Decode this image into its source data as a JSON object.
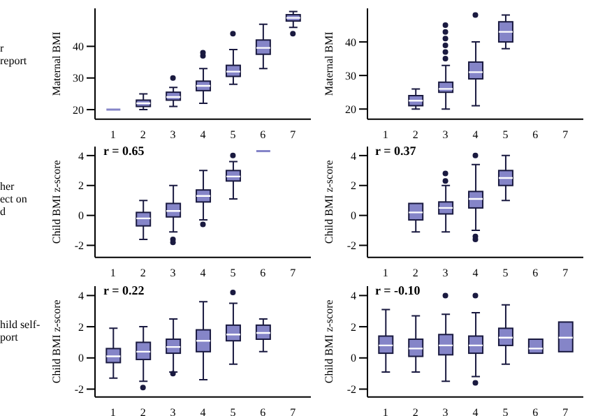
{
  "chart_data": [
    {
      "type": "box",
      "categories": [
        "1",
        "2",
        "3",
        "4",
        "5",
        "6",
        "7"
      ],
      "ylabel": "Maternal BMI",
      "ylim": [
        17,
        52
      ],
      "yticks": [
        20,
        30,
        40
      ],
      "color": "#8585c8",
      "annotations": [
        "r",
        "report"
      ],
      "boxes": [
        {
          "low": 20,
          "q1": 20,
          "median": 20,
          "q3": 20,
          "high": 20
        },
        {
          "low": 20,
          "q1": 21,
          "median": 22,
          "q3": 23,
          "high": 25
        },
        {
          "low": 21,
          "q1": 23,
          "median": 24,
          "q3": 25.5,
          "high": 27,
          "outliers": [
            30
          ]
        },
        {
          "low": 22,
          "q1": 26,
          "median": 27.5,
          "q3": 29,
          "high": 33,
          "outliers": [
            37,
            38
          ]
        },
        {
          "low": 28,
          "q1": 30.5,
          "median": 32,
          "q3": 34,
          "high": 39,
          "outliers": [
            44
          ]
        },
        {
          "low": 33,
          "q1": 37.5,
          "median": 39.5,
          "q3": 42,
          "high": 47
        },
        {
          "low": 46,
          "q1": 48,
          "median": 49,
          "q3": 50,
          "high": 51,
          "outliers": [
            44
          ]
        }
      ]
    },
    {
      "type": "box",
      "categories": [
        "1",
        "2",
        "3",
        "4",
        "5",
        "6",
        "7"
      ],
      "ylabel": "Maternal BMI",
      "ylim": [
        17,
        50
      ],
      "yticks": [
        20,
        30,
        40
      ],
      "color": "#8585c8",
      "boxes": [
        null,
        {
          "low": 20,
          "q1": 21,
          "median": 22.5,
          "q3": 24,
          "high": 26
        },
        {
          "low": 20,
          "q1": 25,
          "median": 26,
          "q3": 28,
          "high": 33,
          "outliers": [
            35,
            37,
            39,
            41,
            43,
            45
          ]
        },
        {
          "low": 21,
          "q1": 29,
          "median": 31,
          "q3": 34,
          "high": 40,
          "outliers": [
            48
          ]
        },
        {
          "low": 38,
          "q1": 40,
          "median": 43,
          "q3": 46,
          "high": 48
        },
        null,
        null
      ]
    },
    {
      "type": "box",
      "categories": [
        "1",
        "2",
        "3",
        "4",
        "5",
        "6",
        "7"
      ],
      "title": "r = 0.65",
      "ylabel": "Child BMI z-score",
      "ylim": [
        -2.8,
        4.6
      ],
      "yticks": [
        -2,
        0,
        2,
        4
      ],
      "color": "#8585c8",
      "annotations": [
        "her",
        "ect on",
        "d"
      ],
      "boxes": [
        null,
        {
          "low": -1.6,
          "q1": -0.7,
          "median": -0.2,
          "q3": 0.2,
          "high": 1.0
        },
        {
          "low": -1.1,
          "q1": -0.1,
          "median": 0.3,
          "q3": 0.8,
          "high": 2.0,
          "outliers": [
            -1.6,
            -1.8
          ]
        },
        {
          "low": -0.3,
          "q1": 0.9,
          "median": 1.3,
          "q3": 1.7,
          "high": 3.0,
          "outliers": [
            -0.6
          ]
        },
        {
          "low": 1.1,
          "q1": 2.3,
          "median": 2.6,
          "q3": 3.0,
          "high": 3.6,
          "outliers": [
            4.0
          ]
        },
        {
          "low": 4.3,
          "q1": 4.3,
          "median": 4.3,
          "q3": 4.3,
          "high": 4.3
        },
        null
      ]
    },
    {
      "type": "box",
      "categories": [
        "1",
        "2",
        "3",
        "4",
        "5",
        "6",
        "7"
      ],
      "title": "r = 0.37",
      "ylabel": "Child BMI z-score",
      "ylim": [
        -2.8,
        4.6
      ],
      "yticks": [
        -2,
        0,
        2,
        4
      ],
      "color": "#8585c8",
      "boxes": [
        null,
        {
          "low": -1.1,
          "q1": -0.3,
          "median": 0.2,
          "q3": 0.8,
          "high": 0.8
        },
        {
          "low": -1.1,
          "q1": 0.1,
          "median": 0.5,
          "q3": 0.9,
          "high": 2.0,
          "outliers": [
            2.3,
            2.8
          ]
        },
        {
          "low": -1.0,
          "q1": 0.5,
          "median": 1.1,
          "q3": 1.6,
          "high": 3.4,
          "outliers": [
            -1.4,
            -1.6,
            4.0
          ]
        },
        {
          "low": 1.0,
          "q1": 2.0,
          "median": 2.5,
          "q3": 3.0,
          "high": 4.0
        },
        null,
        null
      ]
    },
    {
      "type": "box",
      "categories": [
        "1",
        "2",
        "3",
        "4",
        "5",
        "6",
        "7"
      ],
      "title": "r = 0.22",
      "ylabel": "Child BMI z-score",
      "ylim": [
        -2.5,
        4.6
      ],
      "yticks": [
        -2,
        0,
        2,
        4
      ],
      "color": "#8585c8",
      "annotations": [
        "hild self-",
        "port"
      ],
      "boxes": [
        {
          "low": -1.3,
          "q1": -0.3,
          "median": 0.1,
          "q3": 0.6,
          "high": 1.9
        },
        {
          "low": -1.5,
          "q1": -0.1,
          "median": 0.4,
          "q3": 1.0,
          "high": 2.0,
          "outliers": [
            -1.9
          ]
        },
        {
          "low": -0.9,
          "q1": 0.3,
          "median": 0.7,
          "q3": 1.2,
          "high": 2.5,
          "outliers": [
            -1.0
          ]
        },
        {
          "low": -1.4,
          "q1": 0.4,
          "median": 1.1,
          "q3": 1.8,
          "high": 3.6
        },
        {
          "low": -0.4,
          "q1": 1.1,
          "median": 1.5,
          "q3": 2.1,
          "high": 3.5,
          "outliers": [
            4.2
          ]
        },
        {
          "low": 0.4,
          "q1": 1.2,
          "median": 1.6,
          "q3": 2.1,
          "high": 2.5
        },
        null
      ]
    },
    {
      "type": "box",
      "categories": [
        "1",
        "2",
        "3",
        "4",
        "5",
        "6",
        "7"
      ],
      "title": "r = -0.10",
      "ylabel": "Child BMI z-score",
      "ylim": [
        -2.5,
        4.6
      ],
      "yticks": [
        -2,
        0,
        2,
        4
      ],
      "color": "#8585c8",
      "boxes": [
        {
          "low": -0.9,
          "q1": 0.3,
          "median": 0.8,
          "q3": 1.4,
          "high": 3.1
        },
        {
          "low": -0.9,
          "q1": 0.1,
          "median": 0.6,
          "q3": 1.2,
          "high": 2.7
        },
        {
          "low": -1.5,
          "q1": 0.2,
          "median": 0.8,
          "q3": 1.5,
          "high": 2.8,
          "outliers": [
            4.0
          ]
        },
        {
          "low": -1.2,
          "q1": 0.3,
          "median": 0.8,
          "q3": 1.4,
          "high": 2.9,
          "outliers": [
            4.0,
            -1.6
          ]
        },
        {
          "low": -0.4,
          "q1": 0.8,
          "median": 1.3,
          "q3": 1.9,
          "high": 3.4
        },
        {
          "low": 0.3,
          "q1": 0.3,
          "median": 0.6,
          "q3": 1.2,
          "high": 1.2
        },
        {
          "low": 0.4,
          "q1": 0.4,
          "median": 1.3,
          "q3": 2.3,
          "high": 2.3
        }
      ]
    }
  ]
}
